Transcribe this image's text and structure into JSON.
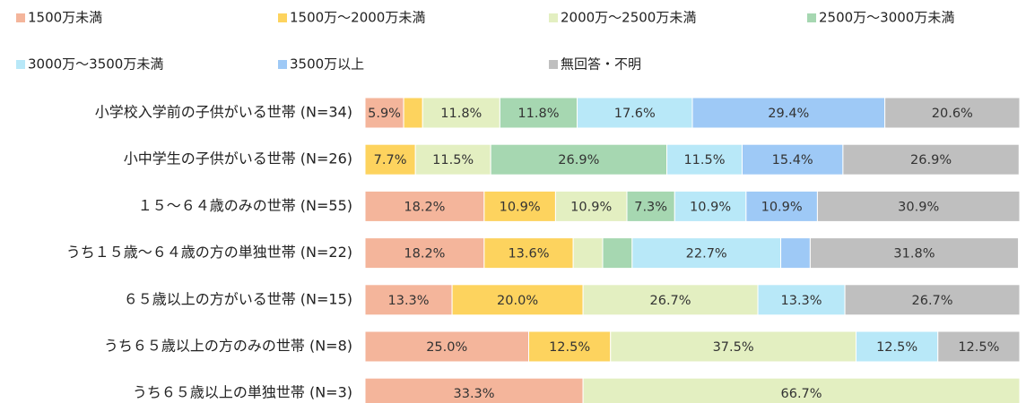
{
  "chart_data": {
    "type": "bar",
    "orientation": "horizontal",
    "stacked": true,
    "categories": [
      "小学校入学前の子供がいる世帯 (N=34)",
      "小中学生の子供がいる世帯 (N=26)",
      "１５～６４歳のみの世帯 (N=55)",
      "うち１５歳～６４歳の方の単独世帯 (N=22)",
      "６５歳以上の方がいる世帯 (N=15)",
      "うち６５歳以上の方のみの世帯 (N=8)",
      "うち６５歳以上の単独世帯 (N=3)"
    ],
    "xlim": [
      0,
      100
    ],
    "series": [
      {
        "name": "1500万未満",
        "color": "#f4b59b",
        "values": [
          5.9,
          0,
          18.2,
          18.2,
          13.3,
          25.0,
          33.3
        ],
        "value_labels": [
          "5.9%",
          null,
          "18.2%",
          "18.2%",
          "13.3%",
          "25.0%",
          "33.3%"
        ]
      },
      {
        "name": "1500万～2000万未満",
        "color": "#fdd35e",
        "values": [
          2.9,
          7.7,
          10.9,
          13.6,
          20.0,
          12.5,
          0
        ],
        "value_labels": [
          null,
          "7.7%",
          "10.9%",
          "13.6%",
          "20.0%",
          "12.5%",
          null
        ]
      },
      {
        "name": "2000万～2500万未満",
        "color": "#e3efc1",
        "values": [
          11.8,
          11.5,
          10.9,
          4.5,
          26.7,
          37.5,
          66.7
        ],
        "value_labels": [
          "11.8%",
          "11.5%",
          "10.9%",
          null,
          "26.7%",
          "37.5%",
          "66.7%"
        ]
      },
      {
        "name": "2500万～3000万未満",
        "color": "#a6d7b1",
        "values": [
          11.8,
          26.9,
          7.3,
          4.5,
          0,
          0,
          0
        ],
        "value_labels": [
          "11.8%",
          "26.9%",
          "7.3%",
          null,
          null,
          null,
          null
        ]
      },
      {
        "name": "3000万～3500万未満",
        "color": "#b8e8f8",
        "values": [
          17.6,
          11.5,
          10.9,
          22.7,
          13.3,
          12.5,
          0
        ],
        "value_labels": [
          "17.6%",
          "11.5%",
          "10.9%",
          "22.7%",
          "13.3%",
          "12.5%",
          null
        ]
      },
      {
        "name": "3500万以上",
        "color": "#9ec9f6",
        "values": [
          29.4,
          15.4,
          10.9,
          4.5,
          0,
          0,
          0
        ],
        "value_labels": [
          "29.4%",
          "15.4%",
          "10.9%",
          null,
          null,
          null,
          null
        ]
      },
      {
        "name": "無回答・不明",
        "color": "#bfbfbf",
        "values": [
          20.6,
          26.9,
          30.9,
          31.8,
          26.7,
          12.5,
          0
        ],
        "value_labels": [
          "20.6%",
          "26.9%",
          "30.9%",
          "31.8%",
          "26.7%",
          "12.5%",
          null
        ]
      }
    ]
  }
}
